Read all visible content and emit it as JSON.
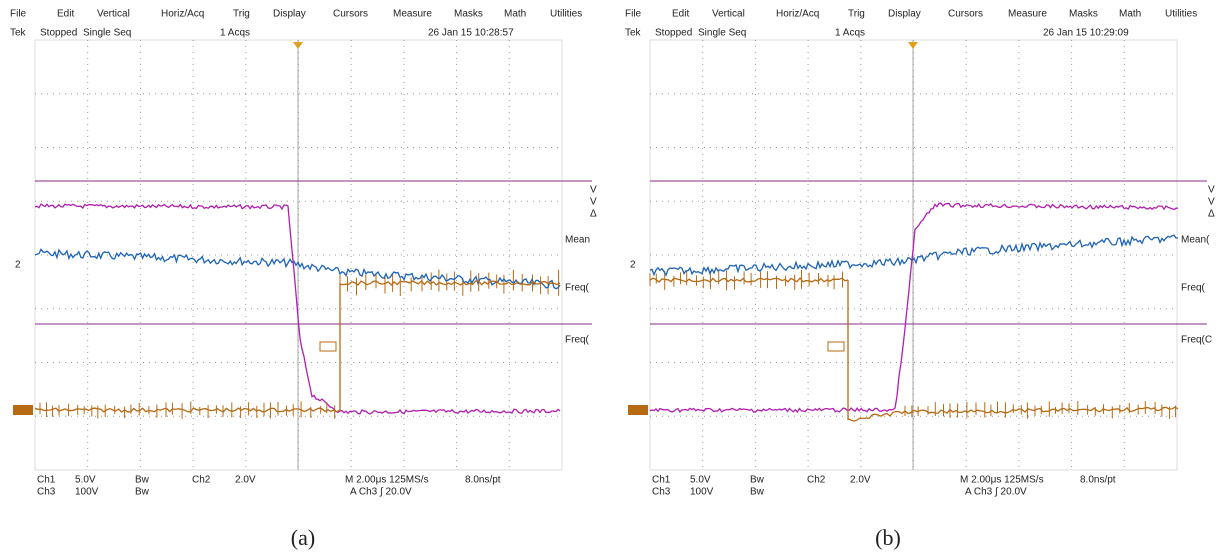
{
  "panels": [
    {
      "menu": [
        "File",
        "Edit",
        "Vertical",
        "Horiz/Acq",
        "Trig",
        "Display",
        "Cursors",
        "Measure",
        "Masks",
        "Math",
        "Utilities"
      ],
      "status": {
        "brand": "Tek",
        "state": "Stopped",
        "mode": "Single Seq",
        "acqs": "1 Acqs",
        "timestamp": "26 Jan 15 10:28:57"
      },
      "channel_marker": "2",
      "side_marks": [
        "V",
        "V",
        "Δ"
      ],
      "right_labels": [
        "Mean",
        "Freq(",
        "Freq("
      ],
      "readout": {
        "ch1": "Ch1",
        "ch1_scale": "5.0V",
        "ch1_bw": "Bw",
        "ch2": "Ch2",
        "ch2_scale": "2.0V",
        "ch3": "Ch3",
        "ch3_scale": "100V",
        "ch3_bw": "Bw",
        "timebase": "M 2.00μs 125MS/s",
        "resolution": "8.0ns/pt",
        "trigger": "A Ch3 ∫ 20.0V"
      },
      "caption": "(a)"
    },
    {
      "menu": [
        "File",
        "Edit",
        "Vertical",
        "Horiz/Acq",
        "Trig",
        "Display",
        "Cursors",
        "Measure",
        "Masks",
        "Math",
        "Utilities"
      ],
      "status": {
        "brand": "Tek",
        "state": "Stopped",
        "mode": "Single Seq",
        "acqs": "1 Acqs",
        "timestamp": "26 Jan 15 10:29:09"
      },
      "channel_marker": "2",
      "side_marks": [
        "V",
        "V",
        "Δ"
      ],
      "right_labels": [
        "Mean(",
        "Freq(",
        "Freq(C"
      ],
      "readout": {
        "ch1": "Ch1",
        "ch1_scale": "5.0V",
        "ch1_bw": "Bw",
        "ch2": "Ch2",
        "ch2_scale": "2.0V",
        "ch3": "Ch3",
        "ch3_scale": "100V",
        "ch3_bw": "Bw",
        "timebase": "M 2.00μs 125MS/s",
        "resolution": "8.0ns/pt",
        "trigger": "A Ch3 ∫ 20.0V"
      },
      "caption": "(b)"
    }
  ]
}
